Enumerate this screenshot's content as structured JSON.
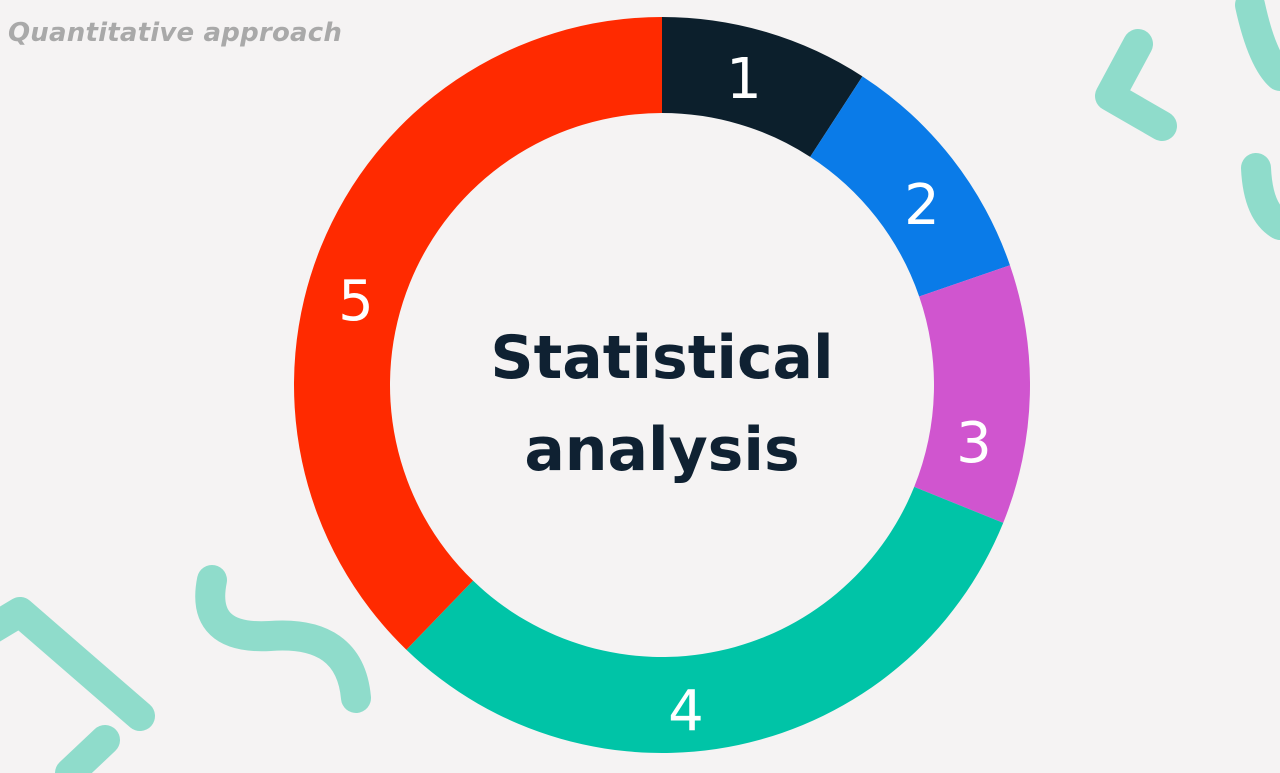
{
  "header": {
    "label": "Quantitative approach"
  },
  "diagram": {
    "center_title_line1": "Statistical",
    "center_title_line2": "analysis",
    "segments": [
      {
        "label": "1",
        "color": "#0c1f2c"
      },
      {
        "label": "2",
        "color": "#0a7be8"
      },
      {
        "label": "3",
        "color": "#d055cf"
      },
      {
        "label": "4",
        "color": "#00c4a7"
      },
      {
        "label": "5",
        "color": "#ff2a00"
      }
    ]
  },
  "decoration": {
    "color": "#8fdccb"
  }
}
